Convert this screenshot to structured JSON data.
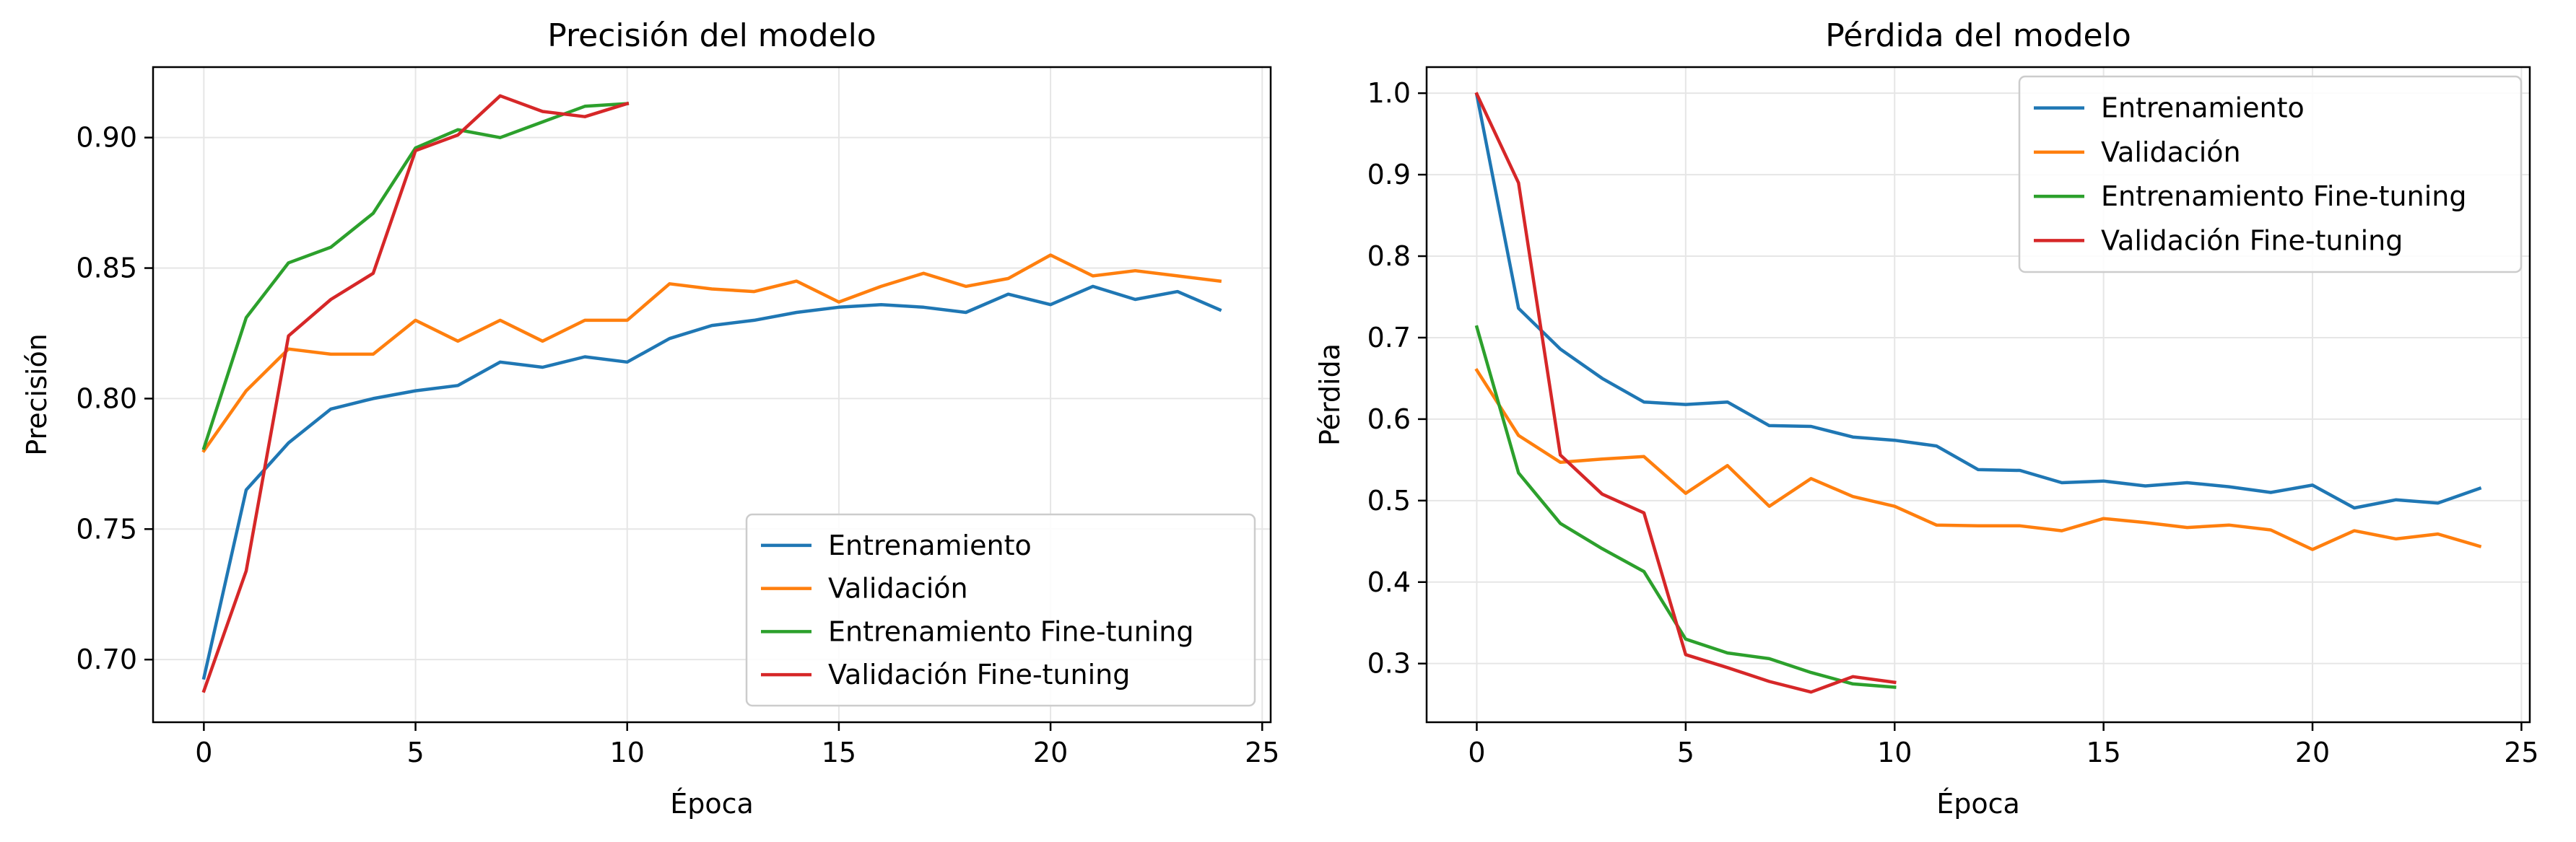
{
  "chart_data": [
    {
      "type": "line",
      "title": "Precisión del modelo",
      "xlabel": "Época",
      "ylabel": "Precisión",
      "xlim": [
        -1.2,
        25.2
      ],
      "ylim": [
        0.676,
        0.927
      ],
      "xticks": [
        0,
        5,
        10,
        15,
        20,
        25
      ],
      "yticks": [
        0.7,
        0.75,
        0.8,
        0.85,
        0.9
      ],
      "ytick_labels": [
        "0.70",
        "0.75",
        "0.80",
        "0.85",
        "0.90"
      ],
      "grid": true,
      "legend_position": "lower right",
      "series": [
        {
          "name": "Entrenamiento",
          "color": "#1f77b4",
          "x": [
            0,
            1,
            2,
            3,
            4,
            5,
            6,
            7,
            8,
            9,
            10,
            11,
            12,
            13,
            14,
            15,
            16,
            17,
            18,
            19,
            20,
            21,
            22,
            23,
            24
          ],
          "values": [
            0.693,
            0.765,
            0.783,
            0.796,
            0.8,
            0.803,
            0.805,
            0.814,
            0.812,
            0.816,
            0.814,
            0.823,
            0.828,
            0.83,
            0.833,
            0.835,
            0.836,
            0.835,
            0.833,
            0.84,
            0.836,
            0.843,
            0.838,
            0.841,
            0.834
          ]
        },
        {
          "name": "Validación",
          "color": "#ff7f0e",
          "x": [
            0,
            1,
            2,
            3,
            4,
            5,
            6,
            7,
            8,
            9,
            10,
            11,
            12,
            13,
            14,
            15,
            16,
            17,
            18,
            19,
            20,
            21,
            22,
            23,
            24
          ],
          "values": [
            0.78,
            0.803,
            0.819,
            0.817,
            0.817,
            0.83,
            0.822,
            0.83,
            0.822,
            0.83,
            0.83,
            0.844,
            0.842,
            0.841,
            0.845,
            0.837,
            0.843,
            0.848,
            0.843,
            0.846,
            0.855,
            0.847,
            0.849,
            0.847,
            0.845
          ]
        },
        {
          "name": "Entrenamiento Fine-tuning",
          "color": "#2ca02c",
          "x": [
            0,
            1,
            2,
            3,
            4,
            5,
            6,
            7,
            8,
            9,
            10
          ],
          "values": [
            0.781,
            0.831,
            0.852,
            0.858,
            0.871,
            0.896,
            0.903,
            0.9,
            0.906,
            0.912,
            0.913
          ]
        },
        {
          "name": "Validación Fine-tuning",
          "color": "#d62728",
          "x": [
            0,
            1,
            2,
            3,
            4,
            5,
            6,
            7,
            8,
            9,
            10
          ],
          "values": [
            0.688,
            0.734,
            0.824,
            0.838,
            0.848,
            0.895,
            0.901,
            0.916,
            0.91,
            0.908,
            0.913
          ]
        }
      ]
    },
    {
      "type": "line",
      "title": "Pérdida del modelo",
      "xlabel": "Época",
      "ylabel": "Pérdida",
      "xlim": [
        -1.2,
        25.2
      ],
      "ylim": [
        0.228,
        1.032
      ],
      "xticks": [
        0,
        5,
        10,
        15,
        20,
        25
      ],
      "yticks": [
        0.3,
        0.4,
        0.5,
        0.6,
        0.7,
        0.8,
        0.9,
        1.0
      ],
      "ytick_labels": [
        "0.3",
        "0.4",
        "0.5",
        "0.6",
        "0.7",
        "0.8",
        "0.9",
        "1.0"
      ],
      "grid": true,
      "legend_position": "upper right",
      "series": [
        {
          "name": "Entrenamiento",
          "color": "#1f77b4",
          "x": [
            0,
            1,
            2,
            3,
            4,
            5,
            6,
            7,
            8,
            9,
            10,
            11,
            12,
            13,
            14,
            15,
            16,
            17,
            18,
            19,
            20,
            21,
            22,
            23,
            24
          ],
          "values": [
            0.998,
            0.736,
            0.686,
            0.65,
            0.621,
            0.618,
            0.621,
            0.592,
            0.591,
            0.578,
            0.574,
            0.567,
            0.538,
            0.537,
            0.522,
            0.524,
            0.518,
            0.522,
            0.517,
            0.51,
            0.519,
            0.491,
            0.501,
            0.497,
            0.515
          ]
        },
        {
          "name": "Validación",
          "color": "#ff7f0e",
          "x": [
            0,
            1,
            2,
            3,
            4,
            5,
            6,
            7,
            8,
            9,
            10,
            11,
            12,
            13,
            14,
            15,
            16,
            17,
            18,
            19,
            20,
            21,
            22,
            23,
            24
          ],
          "values": [
            0.66,
            0.58,
            0.547,
            0.551,
            0.554,
            0.509,
            0.543,
            0.493,
            0.527,
            0.505,
            0.493,
            0.47,
            0.469,
            0.469,
            0.463,
            0.478,
            0.473,
            0.467,
            0.47,
            0.464,
            0.44,
            0.463,
            0.453,
            0.459,
            0.444
          ]
        },
        {
          "name": "Entrenamiento Fine-tuning",
          "color": "#2ca02c",
          "x": [
            0,
            1,
            2,
            3,
            4,
            5,
            6,
            7,
            8,
            9,
            10
          ],
          "values": [
            0.713,
            0.534,
            0.472,
            0.441,
            0.413,
            0.33,
            0.313,
            0.306,
            0.289,
            0.275,
            0.271
          ]
        },
        {
          "name": "Validación Fine-tuning",
          "color": "#d62728",
          "x": [
            0,
            1,
            2,
            3,
            4,
            5,
            6,
            7,
            8,
            9,
            10
          ],
          "values": [
            0.999,
            0.89,
            0.556,
            0.508,
            0.485,
            0.311,
            0.295,
            0.278,
            0.265,
            0.284,
            0.277
          ]
        }
      ]
    }
  ]
}
